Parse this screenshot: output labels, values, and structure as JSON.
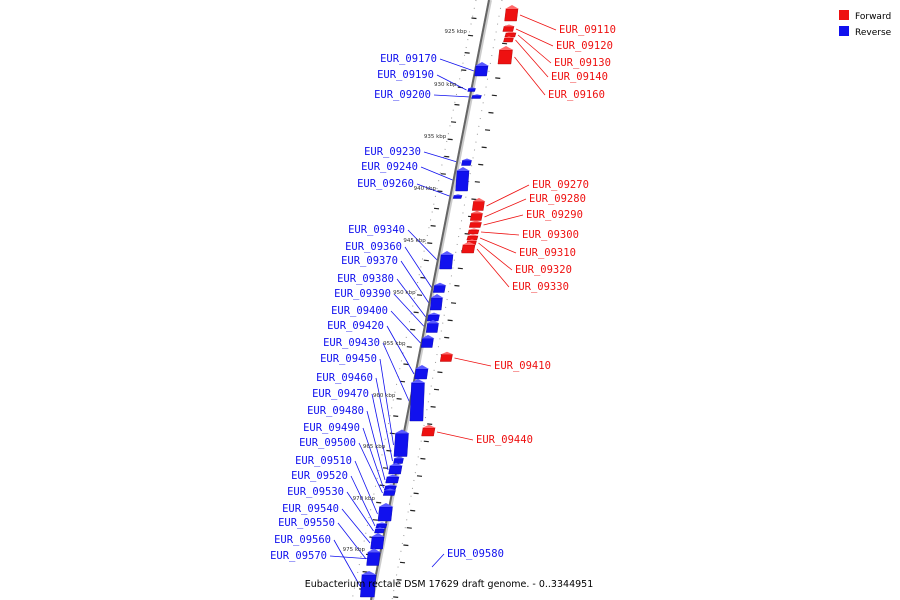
{
  "caption": "Eubacterium rectale DSM 17629 draft genome. - 0..3344951",
  "colors": {
    "forward": "#ee1111",
    "reverse": "#1111ee",
    "axis": "#666666"
  },
  "legend": [
    {
      "label": "Forward",
      "color": "#ee1111"
    },
    {
      "label": "Reverse",
      "color": "#1111ee"
    }
  ],
  "tick_labels": [
    "925 kbp",
    "930 kbp",
    "935 kbp",
    "940 kbp",
    "945 kbp",
    "950 kbp",
    "955 kbp",
    "960 kbp",
    "965 kbp",
    "970 kbp",
    "975 kbp"
  ],
  "forward_genes": [
    "EUR_09110",
    "EUR_09120",
    "EUR_09130",
    "EUR_09140",
    "EUR_09160",
    "EUR_09270",
    "EUR_09280",
    "EUR_09290",
    "EUR_09300",
    "EUR_09310",
    "EUR_09320",
    "EUR_09330",
    "EUR_09410",
    "EUR_09440"
  ],
  "reverse_genes": [
    "EUR_09170",
    "EUR_09190",
    "EUR_09200",
    "EUR_09230",
    "EUR_09240",
    "EUR_09260",
    "EUR_09340",
    "EUR_09360",
    "EUR_09370",
    "EUR_09380",
    "EUR_09390",
    "EUR_09400",
    "EUR_09420",
    "EUR_09430",
    "EUR_09450",
    "EUR_09460",
    "EUR_09470",
    "EUR_09480",
    "EUR_09490",
    "EUR_09500",
    "EUR_09510",
    "EUR_09520",
    "EUR_09530",
    "EUR_09540",
    "EUR_09550",
    "EUR_09560",
    "EUR_09570",
    "EUR_09580"
  ]
}
